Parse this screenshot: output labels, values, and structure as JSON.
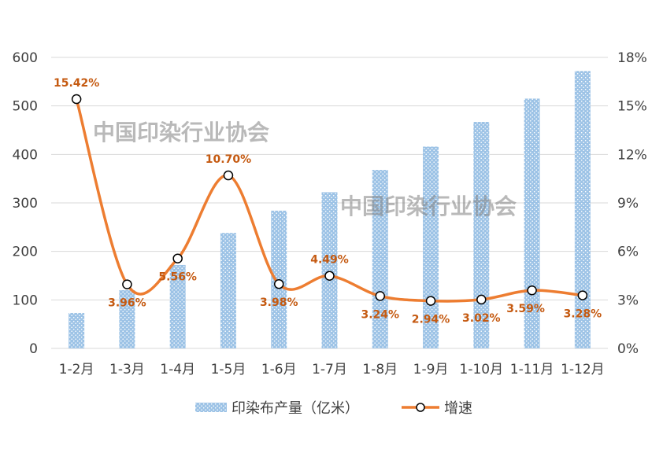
{
  "chart_data": {
    "type": "bar+line",
    "categories": [
      "1-2月",
      "1-3月",
      "1-4月",
      "1-5月",
      "1-6月",
      "1-7月",
      "1-8月",
      "1-9月",
      "1-10月",
      "1-11月",
      "1-12月"
    ],
    "series": [
      {
        "name": "印染布产量（亿米）",
        "type": "bar",
        "axis": "left",
        "values": [
          73,
          120,
          172,
          238,
          284,
          322,
          368,
          416,
          467,
          515,
          572
        ]
      },
      {
        "name": "增速",
        "type": "line",
        "axis": "right",
        "smooth": true,
        "values": [
          15.42,
          3.96,
          5.56,
          10.7,
          3.98,
          4.49,
          3.24,
          2.94,
          3.02,
          3.59,
          3.28
        ],
        "labels": [
          "15.42%",
          "3.96%",
          "5.56%",
          "10.70%",
          "3.98%",
          "4.49%",
          "3.24%",
          "2.94%",
          "3.02%",
          "3.59%",
          "3.28%"
        ]
      }
    ],
    "left_axis": {
      "ylim": [
        0,
        600
      ],
      "ticks": [
        "0",
        "100",
        "200",
        "300",
        "400",
        "500",
        "600"
      ]
    },
    "right_axis": {
      "ylim": [
        0,
        18
      ],
      "ticks": [
        "0%",
        "3%",
        "6%",
        "9%",
        "12%",
        "15%",
        "18%"
      ]
    },
    "grid": true,
    "legend_position": "bottom",
    "colors": {
      "bar": "#9dc3e6",
      "line": "#ed7d31",
      "label": "#c55a11",
      "grid": "#d9d9d9"
    }
  },
  "watermark": "中国印染行业协会"
}
